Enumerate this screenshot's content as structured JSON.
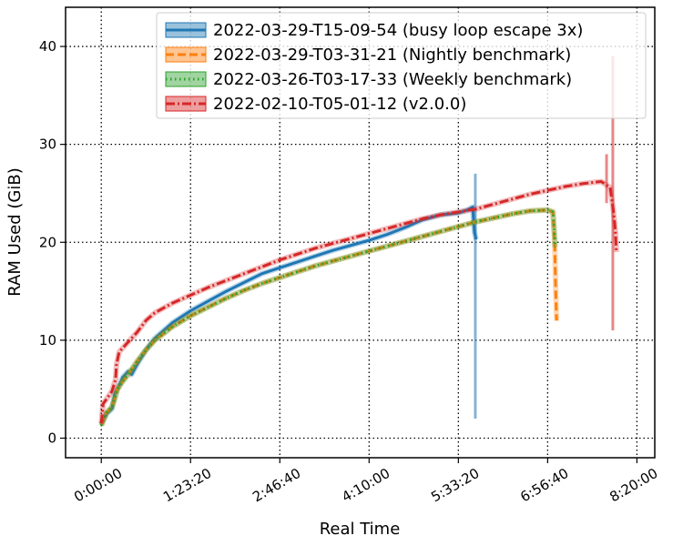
{
  "chart_data": {
    "type": "line",
    "xlabel": "Real Time",
    "ylabel": "RAM Used (GiB)",
    "xlim": [
      -2000,
      31000
    ],
    "ylim": [
      -2,
      44
    ],
    "x_ticks": [
      {
        "value": 0,
        "label": "0:00:00"
      },
      {
        "value": 5000,
        "label": "1:23:20"
      },
      {
        "value": 10000,
        "label": "2:46:40"
      },
      {
        "value": 15000,
        "label": "4:10:00"
      },
      {
        "value": 20000,
        "label": "5:33:20"
      },
      {
        "value": 25000,
        "label": "6:56:40"
      },
      {
        "value": 30000,
        "label": "8:20:00"
      }
    ],
    "y_ticks": [
      0,
      10,
      20,
      30,
      40
    ],
    "grid": true,
    "legend_position": "top-right",
    "series": [
      {
        "name": "2022-03-29-T15-09-54 (busy loop escape 3x)",
        "color": "#1f77b4",
        "style": "solid",
        "points": [
          [
            0,
            1.5
          ],
          [
            300,
            2.5
          ],
          [
            600,
            3.0
          ],
          [
            750,
            4.5
          ],
          [
            900,
            5.0
          ],
          [
            1200,
            6.2
          ],
          [
            1500,
            6.8
          ],
          [
            1700,
            6.5
          ],
          [
            2000,
            7.5
          ],
          [
            2500,
            9.0
          ],
          [
            3000,
            10.2
          ],
          [
            4000,
            11.8
          ],
          [
            5000,
            13.0
          ],
          [
            6000,
            14.0
          ],
          [
            7000,
            15.0
          ],
          [
            8000,
            15.9
          ],
          [
            9000,
            16.8
          ],
          [
            10000,
            17.4
          ],
          [
            11000,
            18.0
          ],
          [
            12000,
            18.6
          ],
          [
            13000,
            19.2
          ],
          [
            14000,
            19.7
          ],
          [
            15000,
            20.2
          ],
          [
            16000,
            20.8
          ],
          [
            17000,
            21.5
          ],
          [
            18000,
            22.3
          ],
          [
            19000,
            22.8
          ],
          [
            20000,
            23.0
          ],
          [
            20500,
            23.3
          ],
          [
            20800,
            23.6
          ],
          [
            20900,
            21.0
          ],
          [
            21000,
            20.3
          ]
        ],
        "band": [
          {
            "x": 20950,
            "ymin": 2.0,
            "ymax": 27.0
          }
        ]
      },
      {
        "name": "2022-03-29-T03-31-21 (Nightly benchmark)",
        "color": "#ff7f0e",
        "style": "dashed",
        "points": [
          [
            0,
            1.3
          ],
          [
            300,
            2.6
          ],
          [
            600,
            3.2
          ],
          [
            750,
            4.0
          ],
          [
            900,
            5.0
          ],
          [
            1200,
            5.8
          ],
          [
            1500,
            6.5
          ],
          [
            2000,
            7.8
          ],
          [
            2500,
            9.0
          ],
          [
            3000,
            10.0
          ],
          [
            4000,
            11.4
          ],
          [
            5000,
            12.5
          ],
          [
            6000,
            13.4
          ],
          [
            7000,
            14.3
          ],
          [
            8000,
            15.1
          ],
          [
            9000,
            15.8
          ],
          [
            10000,
            16.4
          ],
          [
            11000,
            17.0
          ],
          [
            12000,
            17.6
          ],
          [
            13000,
            18.1
          ],
          [
            14000,
            18.6
          ],
          [
            15000,
            19.1
          ],
          [
            16000,
            19.6
          ],
          [
            17000,
            20.1
          ],
          [
            18000,
            20.6
          ],
          [
            19000,
            21.1
          ],
          [
            20000,
            21.6
          ],
          [
            21000,
            22.1
          ],
          [
            22000,
            22.5
          ],
          [
            23000,
            22.9
          ],
          [
            24000,
            23.2
          ],
          [
            25000,
            23.3
          ],
          [
            25300,
            23.1
          ],
          [
            25400,
            19.5
          ],
          [
            25450,
            15.0
          ],
          [
            25500,
            12.0
          ]
        ]
      },
      {
        "name": "2022-03-26-T03-17-33 (Weekly benchmark)",
        "color": "#2ca02c",
        "style": "dotted",
        "points": [
          [
            0,
            1.3
          ],
          [
            300,
            2.6
          ],
          [
            600,
            3.2
          ],
          [
            750,
            4.0
          ],
          [
            900,
            5.0
          ],
          [
            1200,
            5.8
          ],
          [
            1500,
            6.5
          ],
          [
            2000,
            7.8
          ],
          [
            2500,
            9.0
          ],
          [
            3000,
            10.0
          ],
          [
            4000,
            11.4
          ],
          [
            5000,
            12.5
          ],
          [
            6000,
            13.4
          ],
          [
            7000,
            14.3
          ],
          [
            8000,
            15.1
          ],
          [
            9000,
            15.8
          ],
          [
            10000,
            16.4
          ],
          [
            11000,
            17.0
          ],
          [
            12000,
            17.6
          ],
          [
            13000,
            18.1
          ],
          [
            14000,
            18.6
          ],
          [
            15000,
            19.1
          ],
          [
            16000,
            19.6
          ],
          [
            17000,
            20.1
          ],
          [
            18000,
            20.6
          ],
          [
            19000,
            21.1
          ],
          [
            20000,
            21.6
          ],
          [
            21000,
            22.1
          ],
          [
            22000,
            22.5
          ],
          [
            23000,
            22.9
          ],
          [
            24000,
            23.2
          ],
          [
            25000,
            23.3
          ],
          [
            25300,
            23.1
          ],
          [
            25400,
            20.5
          ],
          [
            25420,
            19.5
          ]
        ]
      },
      {
        "name": "2022-02-10-T05-01-12 (v2.0.0)",
        "color": "#d62728",
        "style": "dashdot",
        "points": [
          [
            0,
            1.5
          ],
          [
            100,
            3.5
          ],
          [
            300,
            4.0
          ],
          [
            600,
            4.8
          ],
          [
            800,
            6.0
          ],
          [
            850,
            7.5
          ],
          [
            1000,
            8.8
          ],
          [
            1500,
            9.8
          ],
          [
            2000,
            10.8
          ],
          [
            2500,
            12.0
          ],
          [
            3000,
            12.8
          ],
          [
            4000,
            13.8
          ],
          [
            5000,
            14.6
          ],
          [
            6000,
            15.4
          ],
          [
            7000,
            16.1
          ],
          [
            8000,
            16.8
          ],
          [
            9000,
            17.5
          ],
          [
            10000,
            18.2
          ],
          [
            11000,
            18.8
          ],
          [
            12000,
            19.4
          ],
          [
            13000,
            19.9
          ],
          [
            14000,
            20.4
          ],
          [
            15000,
            20.9
          ],
          [
            16000,
            21.4
          ],
          [
            17000,
            21.9
          ],
          [
            18000,
            22.4
          ],
          [
            19000,
            22.8
          ],
          [
            20000,
            23.1
          ],
          [
            21000,
            23.4
          ],
          [
            22000,
            23.9
          ],
          [
            23000,
            24.4
          ],
          [
            24000,
            24.9
          ],
          [
            25000,
            25.3
          ],
          [
            26000,
            25.7
          ],
          [
            27000,
            26.0
          ],
          [
            28000,
            26.2
          ],
          [
            28500,
            25.6
          ],
          [
            28700,
            23.0
          ],
          [
            28800,
            21.0
          ],
          [
            28850,
            19.0
          ]
        ],
        "band": [
          {
            "x": 28300,
            "ymin": 24.0,
            "ymax": 29.0
          },
          {
            "x": 28650,
            "ymin": 11.0,
            "ymax": 39.0
          }
        ]
      }
    ]
  }
}
